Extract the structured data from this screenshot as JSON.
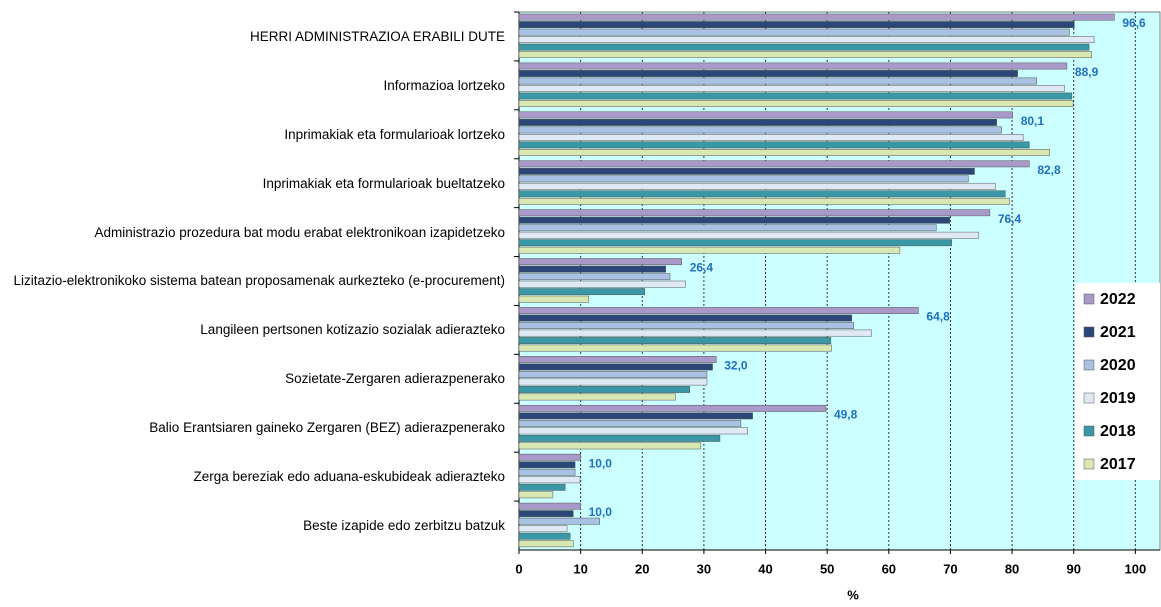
{
  "chart_data": {
    "type": "hbar",
    "xlabel": "%",
    "categories": [
      "HERRI ADMINISTRAZIOA ERABILI DUTE",
      "Informazioa lortzeko",
      "Inprimakiak eta formularioak lortzeko",
      "Inprimakiak eta formularioak bueltatzeko",
      "Administrazio prozedura bat modu erabat elektronikoan izapidetzeko",
      "Lizitazio-elektronikoko sistema batean proposamenak aurkezteko (e-procurement)",
      "Langileen pertsonen kotizazio sozialak adierazteko",
      "Sozietate-Zergaren adierazpenerako",
      "Balio Erantsiaren gaineko Zergaren (BEZ) adierazpenerako",
      "Zerga bereziak edo aduana-eskubideak adierazteko",
      "Beste izapide edo zerbitzu batzuk"
    ],
    "series": [
      {
        "name": "2022",
        "color": "#a999c8",
        "values": [
          96.6,
          88.9,
          80.1,
          82.8,
          76.4,
          26.4,
          64.8,
          32.0,
          49.8,
          10.0,
          10.0
        ],
        "value_labels": [
          "96,6",
          "88,9",
          "80,1",
          "82,8",
          "76,4",
          "26,4",
          "64,8",
          "32,0",
          "49,8",
          "10,0",
          "10,0"
        ]
      },
      {
        "name": "2021",
        "color": "#2c4677",
        "values": [
          90.1,
          80.9,
          77.5,
          73.9,
          69.9,
          23.8,
          54.0,
          31.4,
          37.9,
          9.1,
          8.8
        ]
      },
      {
        "name": "2020",
        "color": "#a9c1e2",
        "values": [
          89.3,
          84.0,
          78.3,
          72.9,
          67.7,
          24.5,
          54.3,
          30.5,
          36.0,
          9.1,
          13.1
        ]
      },
      {
        "name": "2019",
        "color": "#dfe9f6",
        "values": [
          93.3,
          88.5,
          81.8,
          77.3,
          74.6,
          27.0,
          57.2,
          30.5,
          37.1,
          9.9,
          7.8
        ]
      },
      {
        "name": "2018",
        "color": "#3a98a6",
        "values": [
          92.5,
          89.7,
          82.8,
          78.9,
          70.2,
          20.4,
          50.6,
          27.7,
          32.6,
          7.5,
          8.3
        ]
      },
      {
        "name": "2017",
        "color": "#d9e8b2",
        "values": [
          92.9,
          89.9,
          86.1,
          79.6,
          61.8,
          11.3,
          50.7,
          25.4,
          29.5,
          5.5,
          8.8
        ]
      }
    ],
    "xlim": [
      0,
      104
    ],
    "xticks": [
      0,
      10,
      20,
      30,
      40,
      50,
      60,
      70,
      80,
      90,
      100
    ],
    "grid": true,
    "legend": "right"
  }
}
